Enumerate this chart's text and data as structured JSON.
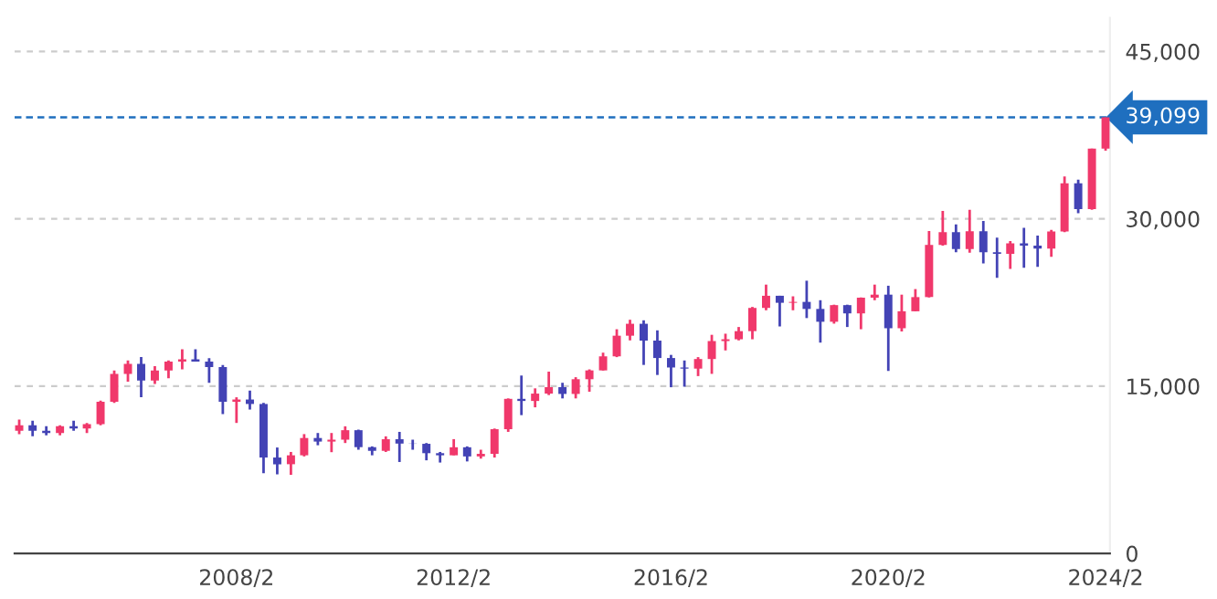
{
  "chart_data": {
    "type": "candlestick",
    "x": [
      "2004-02",
      "2004-05",
      "2004-08",
      "2004-11",
      "2005-02",
      "2005-05",
      "2005-08",
      "2005-11",
      "2006-02",
      "2006-05",
      "2006-08",
      "2006-11",
      "2007-02",
      "2007-05",
      "2007-08",
      "2007-11",
      "2008-02",
      "2008-05",
      "2008-08",
      "2008-11",
      "2009-02",
      "2009-05",
      "2009-08",
      "2009-11",
      "2010-02",
      "2010-05",
      "2010-08",
      "2010-11",
      "2011-02",
      "2011-05",
      "2011-08",
      "2011-11",
      "2012-02",
      "2012-05",
      "2012-08",
      "2012-11",
      "2013-02",
      "2013-05",
      "2013-08",
      "2013-11",
      "2014-02",
      "2014-05",
      "2014-08",
      "2014-11",
      "2015-02",
      "2015-05",
      "2015-08",
      "2015-11",
      "2016-02",
      "2016-05",
      "2016-08",
      "2016-11",
      "2017-02",
      "2017-05",
      "2017-08",
      "2017-11",
      "2018-02",
      "2018-05",
      "2018-08",
      "2018-11",
      "2019-02",
      "2019-05",
      "2019-08",
      "2019-11",
      "2020-02",
      "2020-05",
      "2020-08",
      "2020-11",
      "2021-02",
      "2021-05",
      "2021-08",
      "2021-11",
      "2022-02",
      "2022-05",
      "2022-08",
      "2022-11",
      "2023-02",
      "2023-05",
      "2023-08",
      "2023-11",
      "2024-02"
    ],
    "ohlc": [
      [
        11000,
        12000,
        10700,
        11500
      ],
      [
        11500,
        11900,
        10500,
        11000
      ],
      [
        11000,
        11400,
        10600,
        10800
      ],
      [
        10800,
        11500,
        10600,
        11400
      ],
      [
        11400,
        11900,
        11000,
        11200
      ],
      [
        11200,
        11700,
        10800,
        11600
      ],
      [
        11600,
        13700,
        11500,
        13600
      ],
      [
        13600,
        16400,
        13500,
        16100
      ],
      [
        16100,
        17300,
        15400,
        17000
      ],
      [
        17000,
        17600,
        14000,
        15500
      ],
      [
        15500,
        16800,
        15200,
        16400
      ],
      [
        16400,
        17300,
        15700,
        17200
      ],
      [
        17200,
        18300,
        16500,
        17400
      ],
      [
        17400,
        18300,
        17200,
        17200
      ],
      [
        17200,
        17500,
        15300,
        16700
      ],
      [
        16700,
        16900,
        12500,
        13600
      ],
      [
        13600,
        14000,
        11700,
        13800
      ],
      [
        13800,
        14600,
        12900,
        13400
      ],
      [
        13400,
        13500,
        7200,
        8600
      ],
      [
        8600,
        9500,
        7100,
        7990
      ],
      [
        8000,
        9100,
        7050,
        8800
      ],
      [
        8800,
        10700,
        8700,
        10350
      ],
      [
        10350,
        10800,
        9700,
        10030
      ],
      [
        10030,
        10800,
        9080,
        10200
      ],
      [
        10200,
        11400,
        9900,
        11050
      ],
      [
        11050,
        11100,
        9300,
        9530
      ],
      [
        9530,
        9600,
        8800,
        9200
      ],
      [
        9200,
        10500,
        9100,
        10240
      ],
      [
        10240,
        10900,
        8200,
        9850
      ],
      [
        9850,
        10200,
        9300,
        9830
      ],
      [
        9830,
        9900,
        8350,
        8990
      ],
      [
        8990,
        9100,
        8150,
        8800
      ],
      [
        8800,
        10250,
        8800,
        9520
      ],
      [
        9520,
        9600,
        8250,
        8700
      ],
      [
        8700,
        9300,
        8500,
        8930
      ],
      [
        8930,
        11200,
        8600,
        11140
      ],
      [
        11140,
        13900,
        10900,
        13860
      ],
      [
        13860,
        15950,
        12400,
        13670
      ],
      [
        13670,
        14800,
        13100,
        14330
      ],
      [
        14330,
        16300,
        14200,
        14910
      ],
      [
        14910,
        15300,
        13900,
        14300
      ],
      [
        14300,
        15800,
        13900,
        15620
      ],
      [
        15620,
        16500,
        14500,
        16410
      ],
      [
        16410,
        18000,
        16400,
        17670
      ],
      [
        17670,
        20100,
        17600,
        19520
      ],
      [
        19520,
        20950,
        19100,
        20590
      ],
      [
        20590,
        20900,
        16900,
        19080
      ],
      [
        19080,
        20000,
        16000,
        17520
      ],
      [
        17520,
        17800,
        14900,
        16670
      ],
      [
        16670,
        17300,
        14950,
        16570
      ],
      [
        16570,
        17600,
        15900,
        17430
      ],
      [
        17430,
        19600,
        16100,
        19040
      ],
      [
        19040,
        19700,
        18200,
        19200
      ],
      [
        19200,
        20300,
        19100,
        19930
      ],
      [
        19930,
        22100,
        19200,
        22010
      ],
      [
        22010,
        24100,
        21800,
        23100
      ],
      [
        23100,
        23100,
        20350,
        22470
      ],
      [
        22470,
        23050,
        21800,
        22550
      ],
      [
        22550,
        24450,
        21100,
        21920
      ],
      [
        21920,
        22700,
        18900,
        20770
      ],
      [
        20770,
        22300,
        20600,
        22260
      ],
      [
        22260,
        22300,
        20300,
        21520
      ],
      [
        21520,
        22950,
        20100,
        22930
      ],
      [
        22930,
        24100,
        22700,
        23200
      ],
      [
        23200,
        24000,
        16360,
        20190
      ],
      [
        20190,
        23200,
        19900,
        21710
      ],
      [
        21710,
        23700,
        21700,
        22980
      ],
      [
        22980,
        28900,
        22950,
        27660
      ],
      [
        27660,
        30700,
        27600,
        28810
      ],
      [
        28810,
        29500,
        27000,
        27280
      ],
      [
        27280,
        30800,
        26950,
        28890
      ],
      [
        28890,
        29800,
        26000,
        27000
      ],
      [
        27000,
        28300,
        24700,
        26850
      ],
      [
        26850,
        28000,
        25500,
        27800
      ],
      [
        27800,
        29200,
        25600,
        27590
      ],
      [
        27590,
        28500,
        25700,
        27330
      ],
      [
        27330,
        29000,
        26600,
        28860
      ],
      [
        28860,
        33800,
        28800,
        33170
      ],
      [
        33170,
        33500,
        30500,
        30860
      ],
      [
        30860,
        36300,
        30800,
        36290
      ],
      [
        36290,
        39099,
        36100,
        39099
      ]
    ],
    "colors": [
      "#f0386b",
      "#4343b5",
      "#4343b5",
      "#f0386b",
      "#4343b5",
      "#f0386b",
      "#f0386b",
      "#f0386b",
      "#f0386b",
      "#4343b5",
      "#f0386b",
      "#f0386b",
      "#f0386b",
      "#4343b5",
      "#4343b5",
      "#4343b5",
      "#f0386b",
      "#4343b5",
      "#4343b5",
      "#4343b5",
      "#f0386b",
      "#f0386b",
      "#4343b5",
      "#f0386b",
      "#f0386b",
      "#4343b5",
      "#4343b5",
      "#f0386b",
      "#4343b5",
      "#4343b5",
      "#4343b5",
      "#4343b5",
      "#f0386b",
      "#4343b5",
      "#f0386b",
      "#f0386b",
      "#f0386b",
      "#4343b5",
      "#f0386b",
      "#f0386b",
      "#4343b5",
      "#f0386b",
      "#f0386b",
      "#f0386b",
      "#f0386b",
      "#f0386b",
      "#4343b5",
      "#4343b5",
      "#4343b5",
      "#4343b5",
      "#f0386b",
      "#f0386b",
      "#f0386b",
      "#f0386b",
      "#f0386b",
      "#f0386b",
      "#4343b5",
      "#f0386b",
      "#4343b5",
      "#4343b5",
      "#f0386b",
      "#4343b5",
      "#f0386b",
      "#f0386b",
      "#4343b5",
      "#f0386b",
      "#f0386b",
      "#f0386b",
      "#f0386b",
      "#4343b5",
      "#f0386b",
      "#4343b5",
      "#4343b5",
      "#f0386b",
      "#4343b5",
      "#4343b5",
      "#f0386b",
      "#f0386b",
      "#4343b5",
      "#f0386b",
      "#f0386b"
    ],
    "xlim": [
      "2004-01",
      "2024-03"
    ],
    "xticks": [
      {
        "value": "2008-02",
        "label": "2008/2"
      },
      {
        "value": "2012-02",
        "label": "2012/2"
      },
      {
        "value": "2016-02",
        "label": "2016/2"
      },
      {
        "value": "2020-02",
        "label": "2020/2"
      },
      {
        "value": "2024-02",
        "label": "2024/2"
      }
    ],
    "ylim": [
      0,
      48000
    ],
    "yticks": [
      {
        "value": 0,
        "label": "0"
      },
      {
        "value": 15000,
        "label": "15,000"
      },
      {
        "value": 30000,
        "label": "30,000"
      },
      {
        "value": 45000,
        "label": "45,000"
      }
    ],
    "grid": "y",
    "ref_lines": [
      {
        "axis": "y",
        "value": 39099,
        "label": "39,099",
        "color": "#1f6fbf",
        "line_style": "dashed"
      }
    ]
  }
}
